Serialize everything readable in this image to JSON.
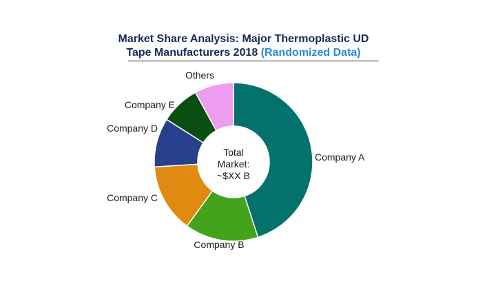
{
  "chart_data": {
    "type": "pie",
    "variant": "donut",
    "title_line1": "Market Share Analysis: Major Thermoplastic UD",
    "title_line2_main": "Tape Manufacturers 2018",
    "title_line2_highlight": "(Randomized Data)",
    "center_lines": [
      "Total",
      "Market:",
      "~$XX B"
    ],
    "slices": [
      {
        "name": "Company A",
        "value": 45,
        "color": "#04726c"
      },
      {
        "name": "Company B",
        "value": 15,
        "color": "#43a31a"
      },
      {
        "name": "Company C",
        "value": 14,
        "color": "#e08a12"
      },
      {
        "name": "Company D",
        "value": 10,
        "color": "#28408c"
      },
      {
        "name": "Company E",
        "value": 8,
        "color": "#0b4e12"
      },
      {
        "name": "Others",
        "value": 8,
        "color": "#ee9cf0"
      }
    ],
    "legend": "none",
    "labels": "outside"
  }
}
